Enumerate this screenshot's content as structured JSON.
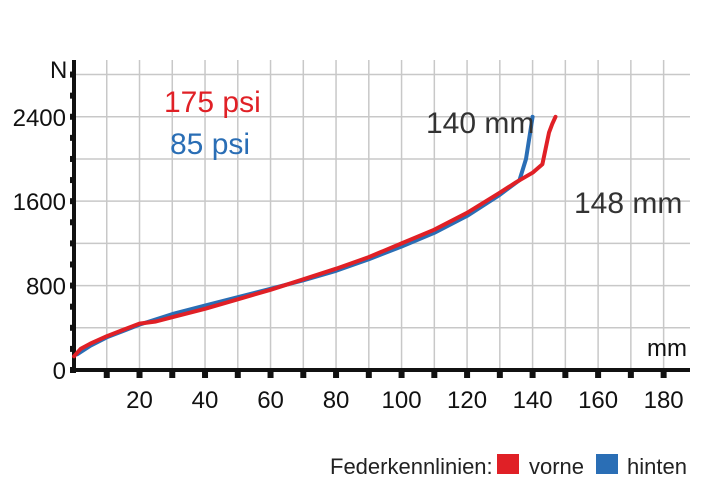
{
  "chart_data": {
    "type": "line",
    "title": "",
    "xlabel": "",
    "ylabel": "",
    "x_unit": "mm",
    "y_unit": "N",
    "xlim": [
      0,
      185
    ],
    "ylim": [
      0,
      2900
    ],
    "xticks": [
      20,
      40,
      60,
      80,
      100,
      120,
      140,
      160,
      180
    ],
    "yticks": [
      0,
      800,
      1600,
      2400
    ],
    "grid": true,
    "legend_position": "bottom-right",
    "series": [
      {
        "name": "vorne",
        "color": "#e02026",
        "x": [
          0,
          2,
          5,
          10,
          15,
          20,
          25,
          30,
          40,
          50,
          60,
          70,
          80,
          90,
          100,
          110,
          120,
          130,
          135,
          140,
          143,
          144,
          145,
          146,
          147
        ],
        "y": [
          130,
          200,
          250,
          320,
          380,
          440,
          460,
          500,
          580,
          670,
          760,
          860,
          960,
          1070,
          1200,
          1330,
          1490,
          1680,
          1780,
          1870,
          1950,
          2100,
          2250,
          2330,
          2400
        ]
      },
      {
        "name": "hinten",
        "color": "#2a6eb5",
        "x": [
          1,
          5,
          10,
          15,
          20,
          25,
          30,
          40,
          50,
          60,
          70,
          80,
          90,
          100,
          110,
          120,
          130,
          136,
          138,
          139,
          140
        ],
        "y": [
          150,
          230,
          310,
          370,
          430,
          480,
          530,
          610,
          690,
          770,
          850,
          940,
          1050,
          1170,
          1300,
          1460,
          1660,
          1800,
          2000,
          2200,
          2400
        ]
      }
    ]
  },
  "annotations": {
    "pressure_front": {
      "text": "175 psi",
      "color": "#e02026"
    },
    "pressure_rear": {
      "text": "85 psi",
      "color": "#2a6eb5"
    },
    "travel_rear": {
      "text": "140 mm",
      "color": "#333333"
    },
    "travel_front": {
      "text": "148 mm",
      "color": "#333333"
    }
  },
  "axis_units": {
    "x": "mm",
    "y": "N"
  },
  "legend": {
    "title": "Federkennlinien:",
    "items": [
      {
        "label": "vorne",
        "color": "#e02026"
      },
      {
        "label": "hinten",
        "color": "#2a6eb5"
      }
    ]
  }
}
